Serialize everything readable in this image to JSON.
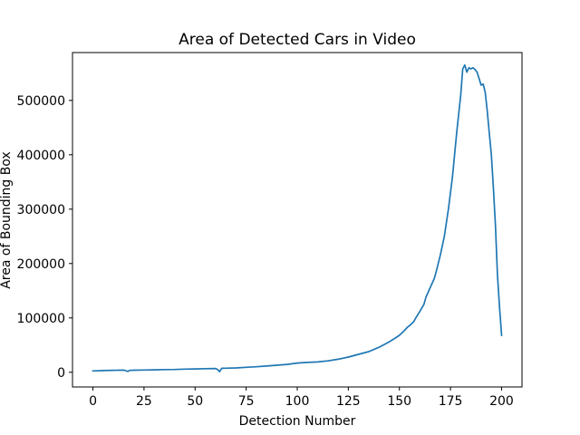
{
  "chart_data": {
    "type": "line",
    "title": "Area of Detected Cars in Video",
    "xlabel": "Detection Number",
    "ylabel": "Area of Bounding Box",
    "xlim": [
      -10,
      210
    ],
    "ylim": [
      -27000,
      588000
    ],
    "xticks": [
      0,
      25,
      50,
      75,
      100,
      125,
      150,
      175,
      200
    ],
    "yticks": [
      0,
      100000,
      200000,
      300000,
      400000,
      500000
    ],
    "grid": false,
    "legend": "none",
    "series": [
      {
        "color": "#1f77b4",
        "x": [
          0,
          5,
          10,
          15,
          16,
          17,
          18,
          20,
          25,
          30,
          35,
          40,
          45,
          50,
          55,
          60,
          61,
          62,
          63,
          65,
          70,
          75,
          80,
          85,
          90,
          95,
          100,
          105,
          110,
          115,
          120,
          125,
          130,
          135,
          140,
          145,
          148,
          150,
          152,
          154,
          155,
          157,
          158,
          160,
          162,
          163,
          165,
          167,
          168,
          170,
          172,
          174,
          176,
          178,
          180,
          181,
          182,
          183,
          184,
          185,
          186,
          187,
          188,
          189,
          190,
          191,
          192,
          193,
          194,
          195,
          196,
          197,
          198,
          199,
          200
        ],
        "y": [
          2500,
          3200,
          3600,
          4000,
          3200,
          1500,
          3500,
          3800,
          4200,
          4500,
          5000,
          5200,
          5800,
          6200,
          6600,
          7000,
          5000,
          1200,
          7300,
          7500,
          8000,
          9200,
          10200,
          11500,
          13000,
          14500,
          17000,
          18200,
          19000,
          21000,
          24000,
          28000,
          33000,
          38000,
          46000,
          56000,
          63000,
          68000,
          75000,
          83000,
          86000,
          93000,
          100000,
          112000,
          125000,
          138000,
          155000,
          172000,
          185000,
          215000,
          250000,
          300000,
          360000,
          440000,
          510000,
          558000,
          565000,
          552000,
          560000,
          558000,
          560000,
          557000,
          552000,
          540000,
          528000,
          530000,
          515000,
          480000,
          440000,
          400000,
          340000,
          270000,
          180000,
          120000,
          68000
        ]
      }
    ]
  }
}
